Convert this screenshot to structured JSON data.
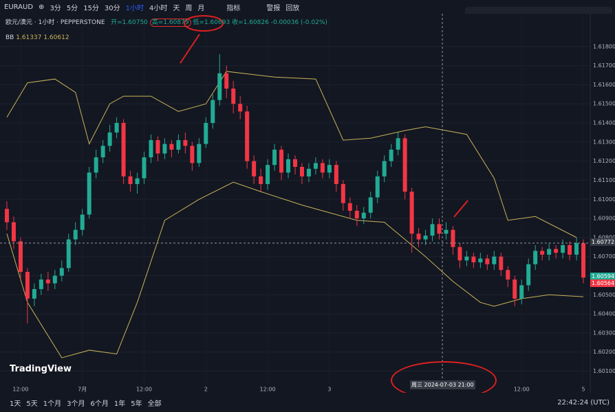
{
  "ui": {
    "symbol": "EURAUD",
    "intervals": [
      "3分",
      "5分",
      "15分",
      "30分",
      "1小时",
      "4小时",
      "天",
      "周",
      "月"
    ],
    "indicators": "指标",
    "alert": "警报",
    "replay": "回放",
    "legend_title": "欧元/澳元 · 1小时 · PEPPERSTONE",
    "ohlc": [
      "开=1.60750",
      "高=1.60879",
      "低=1.60693",
      "收=1.60826"
    ],
    "change": "-0.00036 (-0.02%)",
    "bb_label": "BB",
    "bb_values": [
      "1.61337",
      "1.60612"
    ],
    "price_tags": [
      "1.60772",
      "1.60594",
      "1.60564"
    ],
    "crosshair_time": "周三 2024-07-03 21:00",
    "logo": "TradingView",
    "ranges": [
      "1天",
      "5天",
      "1个月",
      "3个月",
      "6个月",
      "1年",
      "5年",
      "全部"
    ],
    "clock": "22:42:24 (UTC)"
  },
  "chart_data": {
    "type": "candlestick",
    "up_color": "#22ab94",
    "down_color": "#f23645",
    "band_color": "#c9b458",
    "ylim": [
      1.6003,
      1.619
    ],
    "xlim": [
      -1,
      85
    ],
    "yticks": [
      {
        "value": 1.601,
        "label": "1.60100"
      },
      {
        "value": 1.602,
        "label": "1.60200"
      },
      {
        "value": 1.603,
        "label": "1.60300"
      },
      {
        "value": 1.604,
        "label": "1.60400"
      },
      {
        "value": 1.605,
        "label": "1.60500"
      },
      {
        "value": 1.606,
        "label": "1.60600"
      },
      {
        "value": 1.607,
        "label": "1.60700"
      },
      {
        "value": 1.608,
        "label": "1.60800"
      },
      {
        "value": 1.609,
        "label": "1.60900"
      },
      {
        "value": 1.61,
        "label": "1.61000"
      },
      {
        "value": 1.611,
        "label": "1.61100"
      },
      {
        "value": 1.612,
        "label": "1.61200"
      },
      {
        "value": 1.613,
        "label": "1.61300"
      },
      {
        "value": 1.614,
        "label": "1.61400"
      },
      {
        "value": 1.615,
        "label": "1.61500"
      },
      {
        "value": 1.616,
        "label": "1.61600"
      },
      {
        "value": 1.617,
        "label": "1.61700"
      },
      {
        "value": 1.618,
        "label": "1.61800"
      }
    ],
    "xticks": [
      {
        "value": 2,
        "label": "12:00"
      },
      {
        "value": 11,
        "label": "7月"
      },
      {
        "value": 20,
        "label": "12:00"
      },
      {
        "value": 29,
        "label": "2"
      },
      {
        "value": 38,
        "label": "12:00"
      },
      {
        "value": 47,
        "label": "3"
      },
      {
        "value": 75,
        "label": "12:00"
      },
      {
        "value": 84,
        "label": "5"
      }
    ],
    "candles": [
      [
        1.6095,
        1.6099,
        1.6084,
        1.6088
      ],
      [
        1.6088,
        1.6091,
        1.6074,
        1.6078
      ],
      [
        1.6078,
        1.608,
        1.6058,
        1.6062
      ],
      [
        1.6062,
        1.6064,
        1.6035,
        1.6048
      ],
      [
        1.6048,
        1.6056,
        1.6044,
        1.6053
      ],
      [
        1.6053,
        1.6061,
        1.605,
        1.6058
      ],
      [
        1.6058,
        1.6062,
        1.6052,
        1.6056
      ],
      [
        1.6056,
        1.6063,
        1.6053,
        1.606
      ],
      [
        1.606,
        1.6068,
        1.6057,
        1.6064
      ],
      [
        1.6064,
        1.6082,
        1.6062,
        1.6079
      ],
      [
        1.6079,
        1.6088,
        1.6076,
        1.6084
      ],
      [
        1.6084,
        1.6095,
        1.6081,
        1.6092
      ],
      [
        1.6092,
        1.6117,
        1.609,
        1.6114
      ],
      [
        1.6114,
        1.6126,
        1.6111,
        1.6122
      ],
      [
        1.6122,
        1.6131,
        1.6119,
        1.6128
      ],
      [
        1.6128,
        1.6139,
        1.6125,
        1.6135
      ],
      [
        1.6135,
        1.6143,
        1.6132,
        1.614
      ],
      [
        1.614,
        1.6142,
        1.6108,
        1.6112
      ],
      [
        1.6112,
        1.6115,
        1.6104,
        1.6108
      ],
      [
        1.6108,
        1.6114,
        1.6103,
        1.6111
      ],
      [
        1.6111,
        1.6125,
        1.6108,
        1.6122
      ],
      [
        1.6122,
        1.6134,
        1.6119,
        1.6131
      ],
      [
        1.6131,
        1.6133,
        1.612,
        1.6124
      ],
      [
        1.6124,
        1.6132,
        1.6121,
        1.6129
      ],
      [
        1.6129,
        1.6131,
        1.6122,
        1.6126
      ],
      [
        1.6126,
        1.6134,
        1.6124,
        1.6131
      ],
      [
        1.6131,
        1.6135,
        1.6124,
        1.6128
      ],
      [
        1.6128,
        1.613,
        1.6115,
        1.6119
      ],
      [
        1.6119,
        1.6132,
        1.6117,
        1.6129
      ],
      [
        1.6129,
        1.6143,
        1.6127,
        1.614
      ],
      [
        1.614,
        1.6155,
        1.6137,
        1.6152
      ],
      [
        1.6152,
        1.6176,
        1.6149,
        1.6166
      ],
      [
        1.6166,
        1.617,
        1.6153,
        1.6158
      ],
      [
        1.6158,
        1.6162,
        1.6145,
        1.615
      ],
      [
        1.615,
        1.6154,
        1.6142,
        1.6146
      ],
      [
        1.6146,
        1.6149,
        1.6116,
        1.612
      ],
      [
        1.612,
        1.6123,
        1.6108,
        1.6112
      ],
      [
        1.6112,
        1.6116,
        1.6104,
        1.6108
      ],
      [
        1.6108,
        1.6121,
        1.6105,
        1.6118
      ],
      [
        1.6118,
        1.6129,
        1.6115,
        1.6126
      ],
      [
        1.6126,
        1.6128,
        1.611,
        1.6114
      ],
      [
        1.6114,
        1.6124,
        1.6111,
        1.6121
      ],
      [
        1.6121,
        1.6123,
        1.6113,
        1.6117
      ],
      [
        1.6117,
        1.6119,
        1.6108,
        1.6112
      ],
      [
        1.6112,
        1.6119,
        1.6109,
        1.6116
      ],
      [
        1.6116,
        1.6122,
        1.6113,
        1.6119
      ],
      [
        1.6119,
        1.6121,
        1.6111,
        1.6114
      ],
      [
        1.6114,
        1.6121,
        1.6111,
        1.6118
      ],
      [
        1.6118,
        1.612,
        1.6104,
        1.6108
      ],
      [
        1.6108,
        1.611,
        1.6094,
        1.6098
      ],
      [
        1.6098,
        1.6101,
        1.609,
        1.6094
      ],
      [
        1.6094,
        1.6097,
        1.6086,
        1.609
      ],
      [
        1.609,
        1.6096,
        1.6087,
        1.6093
      ],
      [
        1.6093,
        1.6104,
        1.609,
        1.6101
      ],
      [
        1.6101,
        1.6115,
        1.6098,
        1.6112
      ],
      [
        1.6112,
        1.6123,
        1.6109,
        1.612
      ],
      [
        1.612,
        1.6129,
        1.6117,
        1.6126
      ],
      [
        1.6126,
        1.6135,
        1.6123,
        1.6132
      ],
      [
        1.6132,
        1.6134,
        1.61,
        1.6104
      ],
      [
        1.6104,
        1.6106,
        1.6072,
        1.6082
      ],
      [
        1.6082,
        1.6085,
        1.6075,
        1.6079
      ],
      [
        1.6079,
        1.6084,
        1.6076,
        1.6081
      ],
      [
        1.6081,
        1.609,
        1.6078,
        1.6087
      ],
      [
        1.6087,
        1.609,
        1.6079,
        1.6082
      ],
      [
        1.6082,
        1.6088,
        1.6079,
        1.6084
      ],
      [
        1.6084,
        1.6086,
        1.6071,
        1.6075
      ],
      [
        1.6075,
        1.6077,
        1.6064,
        1.6068
      ],
      [
        1.6068,
        1.6073,
        1.6065,
        1.607
      ],
      [
        1.607,
        1.6072,
        1.6064,
        1.6067
      ],
      [
        1.6067,
        1.6072,
        1.6064,
        1.6069
      ],
      [
        1.6069,
        1.6071,
        1.6063,
        1.6066
      ],
      [
        1.6066,
        1.6073,
        1.6063,
        1.607
      ],
      [
        1.607,
        1.6072,
        1.606,
        1.6063
      ],
      [
        1.6063,
        1.6065,
        1.6054,
        1.6058
      ],
      [
        1.6058,
        1.606,
        1.6044,
        1.6048
      ],
      [
        1.6048,
        1.6058,
        1.6045,
        1.6055
      ],
      [
        1.6055,
        1.6069,
        1.6052,
        1.6066
      ],
      [
        1.6066,
        1.6076,
        1.6063,
        1.6073
      ],
      [
        1.6073,
        1.6075,
        1.6068,
        1.6071
      ],
      [
        1.6071,
        1.6077,
        1.6068,
        1.6074
      ],
      [
        1.6074,
        1.6076,
        1.6069,
        1.6072
      ],
      [
        1.6072,
        1.6079,
        1.6069,
        1.6076
      ],
      [
        1.6076,
        1.6078,
        1.6068,
        1.6071
      ],
      [
        1.6071,
        1.608,
        1.6068,
        1.6077
      ],
      [
        1.6077,
        1.6079,
        1.6056,
        1.6059
      ]
    ],
    "bands": [
      {
        "x": [
          0,
          3,
          7,
          10,
          12,
          15,
          17,
          21,
          25,
          29,
          32,
          39,
          45,
          49,
          53,
          58,
          61,
          67,
          71,
          73,
          77,
          83
        ],
        "values": [
          1.6143,
          1.6161,
          1.6163,
          1.6156,
          1.6129,
          1.615,
          1.6154,
          1.6154,
          1.6146,
          1.615,
          1.6167,
          1.6164,
          1.6163,
          1.6131,
          1.6132,
          1.6136,
          1.6138,
          1.6134,
          1.6111,
          1.6089,
          1.6091,
          1.608
        ]
      },
      {
        "x": [
          0,
          3,
          8,
          12,
          16,
          19,
          23,
          28,
          33,
          37,
          43,
          47,
          51,
          55,
          58,
          61,
          65,
          69,
          71,
          75,
          79,
          84
        ],
        "values": [
          1.6082,
          1.6046,
          1.6017,
          1.6021,
          1.6019,
          1.6046,
          1.6089,
          1.61,
          1.6109,
          1.6104,
          1.6097,
          1.6093,
          1.6089,
          1.6088,
          1.6079,
          1.607,
          1.6057,
          1.6046,
          1.6044,
          1.6048,
          1.605,
          1.6049
        ]
      }
    ]
  }
}
